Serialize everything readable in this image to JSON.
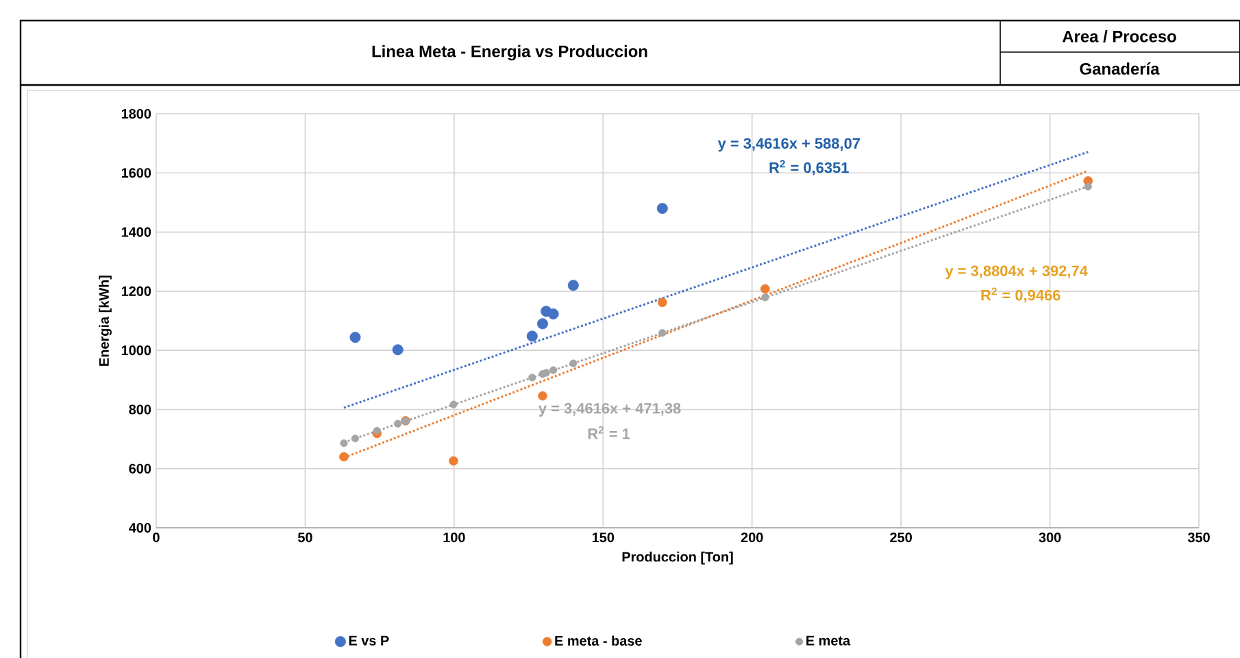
{
  "chart_data": {
    "type": "scatter",
    "title": "Linea Meta - Energia vs Produccion",
    "subtitle": "Area / Proceso",
    "xlabel": "Produccion [Ton]",
    "ylabel": "Energia [kWh]",
    "xlim": [
      0,
      350
    ],
    "ylim": [
      400,
      1800
    ],
    "xticks": [
      0,
      50,
      100,
      150,
      200,
      250,
      300,
      350
    ],
    "yticks": [
      400,
      600,
      800,
      1000,
      1200,
      1400,
      1600,
      1800
    ],
    "grid": true,
    "legend": "bottom",
    "series": [
      {
        "name": "E vs P",
        "color": "#4472c4",
        "marker": "circle",
        "x": [
          66.8,
          81.1,
          126.2,
          129.7,
          130.9,
          133.3,
          140,
          169.9
        ],
        "values": [
          1044,
          1002,
          1048,
          1090,
          1132,
          1123,
          1220,
          1480
        ]
      },
      {
        "name": "E meta - base",
        "color": "#ed7d31",
        "marker": "circle",
        "x": [
          63,
          74.1,
          83.7,
          99.8,
          129.7,
          169.9,
          204.4,
          312.8
        ],
        "values": [
          640,
          719,
          762,
          626,
          846,
          1162,
          1208,
          1573
        ]
      },
      {
        "name": "E meta",
        "color": "#a5a5a5",
        "marker": "circle",
        "x": [
          63,
          66.8,
          74.1,
          81.1,
          83.7,
          99.8,
          126.2,
          129.7,
          130.9,
          133.3,
          140,
          169.9,
          204.4,
          312.8
        ],
        "values": [
          686,
          702,
          728,
          752,
          761,
          817,
          908,
          920,
          924,
          933,
          956,
          1059,
          1179,
          1554
        ]
      },
      {
        "type": "line",
        "color": "#4472c4",
        "line_style": "dotted",
        "x": [
          63,
          312.8
        ],
        "values": [
          806,
          1671
        ]
      },
      {
        "type": "line",
        "color": "#ed7d31",
        "line_style": "dotted",
        "x": [
          63,
          312.8
        ],
        "values": [
          637,
          1607
        ]
      },
      {
        "type": "line",
        "color": "#a5a5a5",
        "line_style": "dotted",
        "x": [
          63,
          312.8
        ],
        "values": [
          689,
          1554
        ]
      }
    ],
    "annotations": [
      "Ganadería",
      "y = 3,4616x + 588,07",
      "R$^{2}$ = 0,6351",
      "y = 3,8804x + 392,74",
      "R$^{2}$ = 0,9466",
      "y = 3,4616x + 471,38",
      "R$^{2}$ = 1"
    ]
  }
}
